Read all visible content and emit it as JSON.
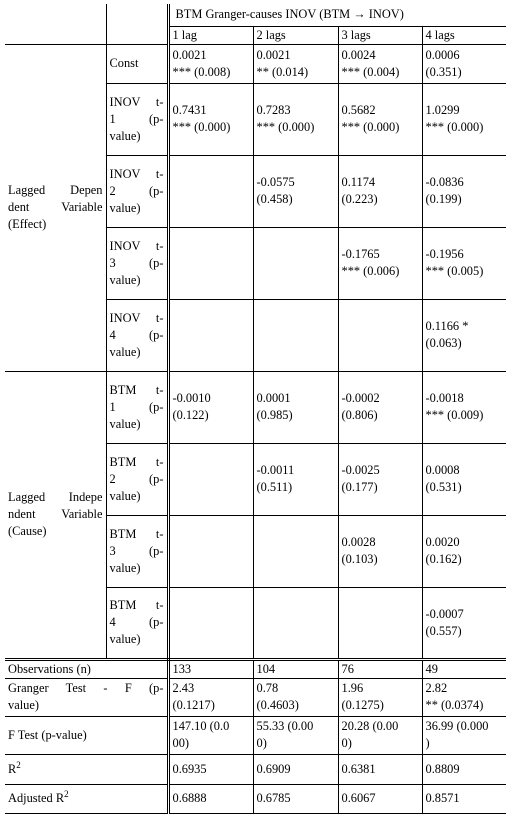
{
  "table": {
    "group_header": "BTM Granger-causes INOV (BTM → INOV)",
    "lag_headers": [
      "1 lag",
      "2 lags",
      "3 lags",
      "4 lags"
    ],
    "groups": {
      "dependent": [
        "Lagged Depen",
        "dent Variable",
        "(Effect)"
      ],
      "independent": [
        "Lagged Indepe",
        "ndent Variable",
        "(Cause)"
      ]
    },
    "const_label": "Const",
    "inov_labels": [
      {
        "name": "INOV",
        "t": "t-",
        "lag": "1",
        "p": "(p-",
        "val": "value)"
      },
      {
        "name": "INOV",
        "t": "t-",
        "lag": "2",
        "p": "(p-",
        "val": "value)"
      },
      {
        "name": "INOV",
        "t": "t-",
        "lag": "3",
        "p": "(p-",
        "val": "value)"
      },
      {
        "name": "INOV",
        "t": "t-",
        "lag": "4",
        "p": "(p-",
        "val": "value)"
      }
    ],
    "btm_labels": [
      {
        "name": "BTM",
        "t": "t-",
        "lag": "1",
        "p": "(p-",
        "val": "value)"
      },
      {
        "name": "BTM",
        "t": "t-",
        "lag": "2",
        "p": "(p-",
        "val": "value)"
      },
      {
        "name": "BTM",
        "t": "t-",
        "lag": "3",
        "p": "(p-",
        "val": "value)"
      },
      {
        "name": "BTM",
        "t": "t-",
        "lag": "4",
        "p": "(p-",
        "val": "value)"
      }
    ],
    "const_cells": [
      [
        "0.0021",
        "*** (0.008)"
      ],
      [
        "0.0021",
        "** (0.014)"
      ],
      [
        "0.0024",
        "*** (0.004)"
      ],
      [
        "0.0006",
        "(0.351)"
      ]
    ],
    "inov_cells": [
      [
        [
          "0.7431",
          "*** (0.000)"
        ],
        [
          "0.7283",
          "*** (0.000)"
        ],
        [
          "0.5682",
          "*** (0.000)"
        ],
        [
          "1.0299",
          "*** (0.000)"
        ]
      ],
      [
        [
          "",
          ""
        ],
        [
          "-0.0575",
          "(0.458)"
        ],
        [
          "0.1174",
          "(0.223)"
        ],
        [
          "-0.0836",
          "(0.199)"
        ]
      ],
      [
        [
          "",
          ""
        ],
        [
          "",
          ""
        ],
        [
          "-0.1765",
          "*** (0.006)"
        ],
        [
          "-0.1956",
          "*** (0.005)"
        ]
      ],
      [
        [
          "",
          ""
        ],
        [
          "",
          ""
        ],
        [
          "",
          ""
        ],
        [
          "0.1166 *",
          "(0.063)"
        ]
      ]
    ],
    "btm_cells": [
      [
        [
          "-0.0010",
          "(0.122)"
        ],
        [
          "0.0001",
          "(0.985)"
        ],
        [
          "-0.0002",
          "(0.806)"
        ],
        [
          "-0.0018",
          "*** (0.009)"
        ]
      ],
      [
        [
          "",
          ""
        ],
        [
          "-0.0011",
          "(0.511)"
        ],
        [
          "-0.0025",
          "(0.177)"
        ],
        [
          "0.0008",
          "(0.531)"
        ]
      ],
      [
        [
          "",
          ""
        ],
        [
          "",
          ""
        ],
        [
          "0.0028",
          "(0.103)"
        ],
        [
          "0.0020",
          "(0.162)"
        ]
      ],
      [
        [
          "",
          ""
        ],
        [
          "",
          ""
        ],
        [
          "",
          ""
        ],
        [
          "-0.0007",
          "(0.557)"
        ]
      ]
    ],
    "observations": {
      "label": "Observations (n)",
      "values": [
        "133",
        "104",
        "76",
        "49"
      ]
    },
    "granger": {
      "label": [
        "Granger Test - F",
        "(p-",
        "value)"
      ],
      "values": [
        [
          "2.43",
          "(0.1217)"
        ],
        [
          "0.78",
          "(0.4603)"
        ],
        [
          "1.96",
          "(0.1275)"
        ],
        [
          "2.82",
          "** (0.0374)"
        ]
      ]
    },
    "ftest": {
      "label": "F Test (p-value)",
      "values": [
        [
          "147.10 (0.0",
          "00)"
        ],
        [
          "55.33 (0.00",
          "0)"
        ],
        [
          "20.28 (0.00",
          "0)"
        ],
        [
          "36.99 (0.000",
          ")"
        ]
      ]
    },
    "r2": {
      "label": "R",
      "sup": "2",
      "values": [
        "0.6935",
        "0.6909",
        "0.6381",
        "0.8809"
      ]
    },
    "adj_r2": {
      "label": "Adjusted R",
      "sup": "2",
      "values": [
        "0.6888",
        "0.6785",
        "0.6067",
        "0.8571"
      ]
    }
  }
}
